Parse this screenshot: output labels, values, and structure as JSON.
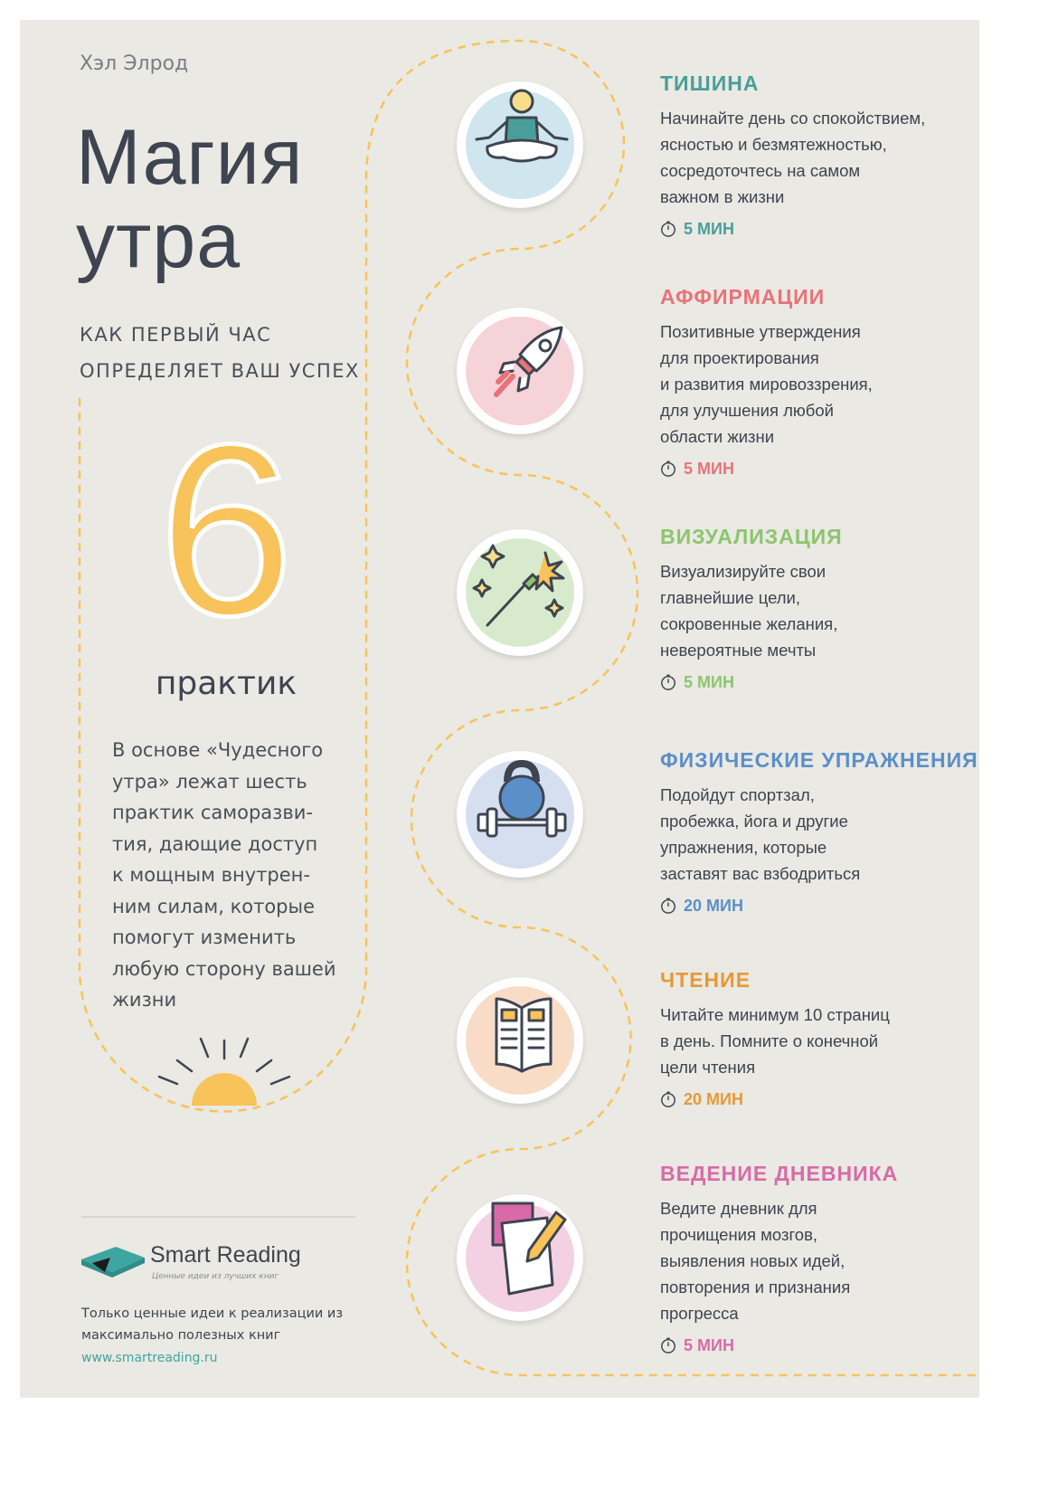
{
  "author": "Хэл Элрод",
  "title_line1": "Магия",
  "title_line2": "утра",
  "subtitle_line1": "КАК ПЕРВЫЙ ЧАС",
  "subtitle_line2": "ОПРЕДЕЛЯЕТ ВАШ УСПЕХ",
  "number": "6",
  "number_label": "практик",
  "intro": [
    "В основе «Чудесного",
    "утра» лежат шесть",
    "практик саморазви-",
    "тия, дающие доступ",
    "к мощным внутрен-",
    "ним силам, которые",
    "помогут изменить",
    "любую сторону вашей",
    "жизни"
  ],
  "logo": {
    "name": "Smart Reading",
    "tagline": "Ценные идеи из лучших книг"
  },
  "footer": {
    "text_line1": "Только ценные идеи к реализации из",
    "text_line2": "максимально полезных книг",
    "url": "www.smartreading.ru"
  },
  "colors": {
    "background": "#eae9e3",
    "path": "#f7c35a",
    "title": "#3e4450"
  },
  "practices": [
    {
      "title": "ТИШИНА",
      "lines": [
        "Начинайте день со спокойствием,",
        "ясностью и безмятежностью,",
        "сосредоточтесь на самом",
        "важном в жизни"
      ],
      "time": "5 МИН",
      "color": "#4a9e9a",
      "icon": "meditation-icon",
      "circle": "#cfe6ee"
    },
    {
      "title": "АФФИРМАЦИИ",
      "lines": [
        "Позитивные утверждения",
        "для проектирования",
        "и развития мировоззрения,",
        "для улучшения любой",
        "области жизни"
      ],
      "time": "5 МИН",
      "color": "#e8737a",
      "icon": "rocket-icon",
      "circle": "#f6d3d8"
    },
    {
      "title": "ВИЗУАЛИЗАЦИЯ",
      "lines": [
        "Визуализируйте свои",
        "главнейшие цели,",
        "сокровенные желания,",
        "невероятные мечты"
      ],
      "time": "5 МИН",
      "color": "#8cc56e",
      "icon": "sparkler-icon",
      "circle": "#d7ebcc"
    },
    {
      "title": "ФИЗИЧЕСКИЕ УПРАЖНЕНИЯ",
      "lines": [
        "Подойдут спортзал,",
        "пробежка, йога и другие",
        "упражнения, которые",
        "заставят вас взбодриться"
      ],
      "time": "20 МИН",
      "color": "#5b8fc9",
      "icon": "kettlebell-icon",
      "circle": "#d5dff0"
    },
    {
      "title": "ЧТЕНИЕ",
      "lines": [
        "Читайте минимум 10 страниц",
        "в день. Помните о конечной",
        "цели чтения"
      ],
      "time": "20 МИН",
      "color": "#e59a33",
      "icon": "book-icon",
      "circle": "#f9dcc6"
    },
    {
      "title": "ВЕДЕНИЕ ДНЕВНИКА",
      "lines": [
        "Ведите дневник для",
        "прочищения мозгов,",
        "выявления новых идей,",
        "повторения и признания",
        "прогресса"
      ],
      "time": "5 МИН",
      "color": "#d96aa8",
      "icon": "journal-icon",
      "circle": "#f4d0e3"
    }
  ]
}
